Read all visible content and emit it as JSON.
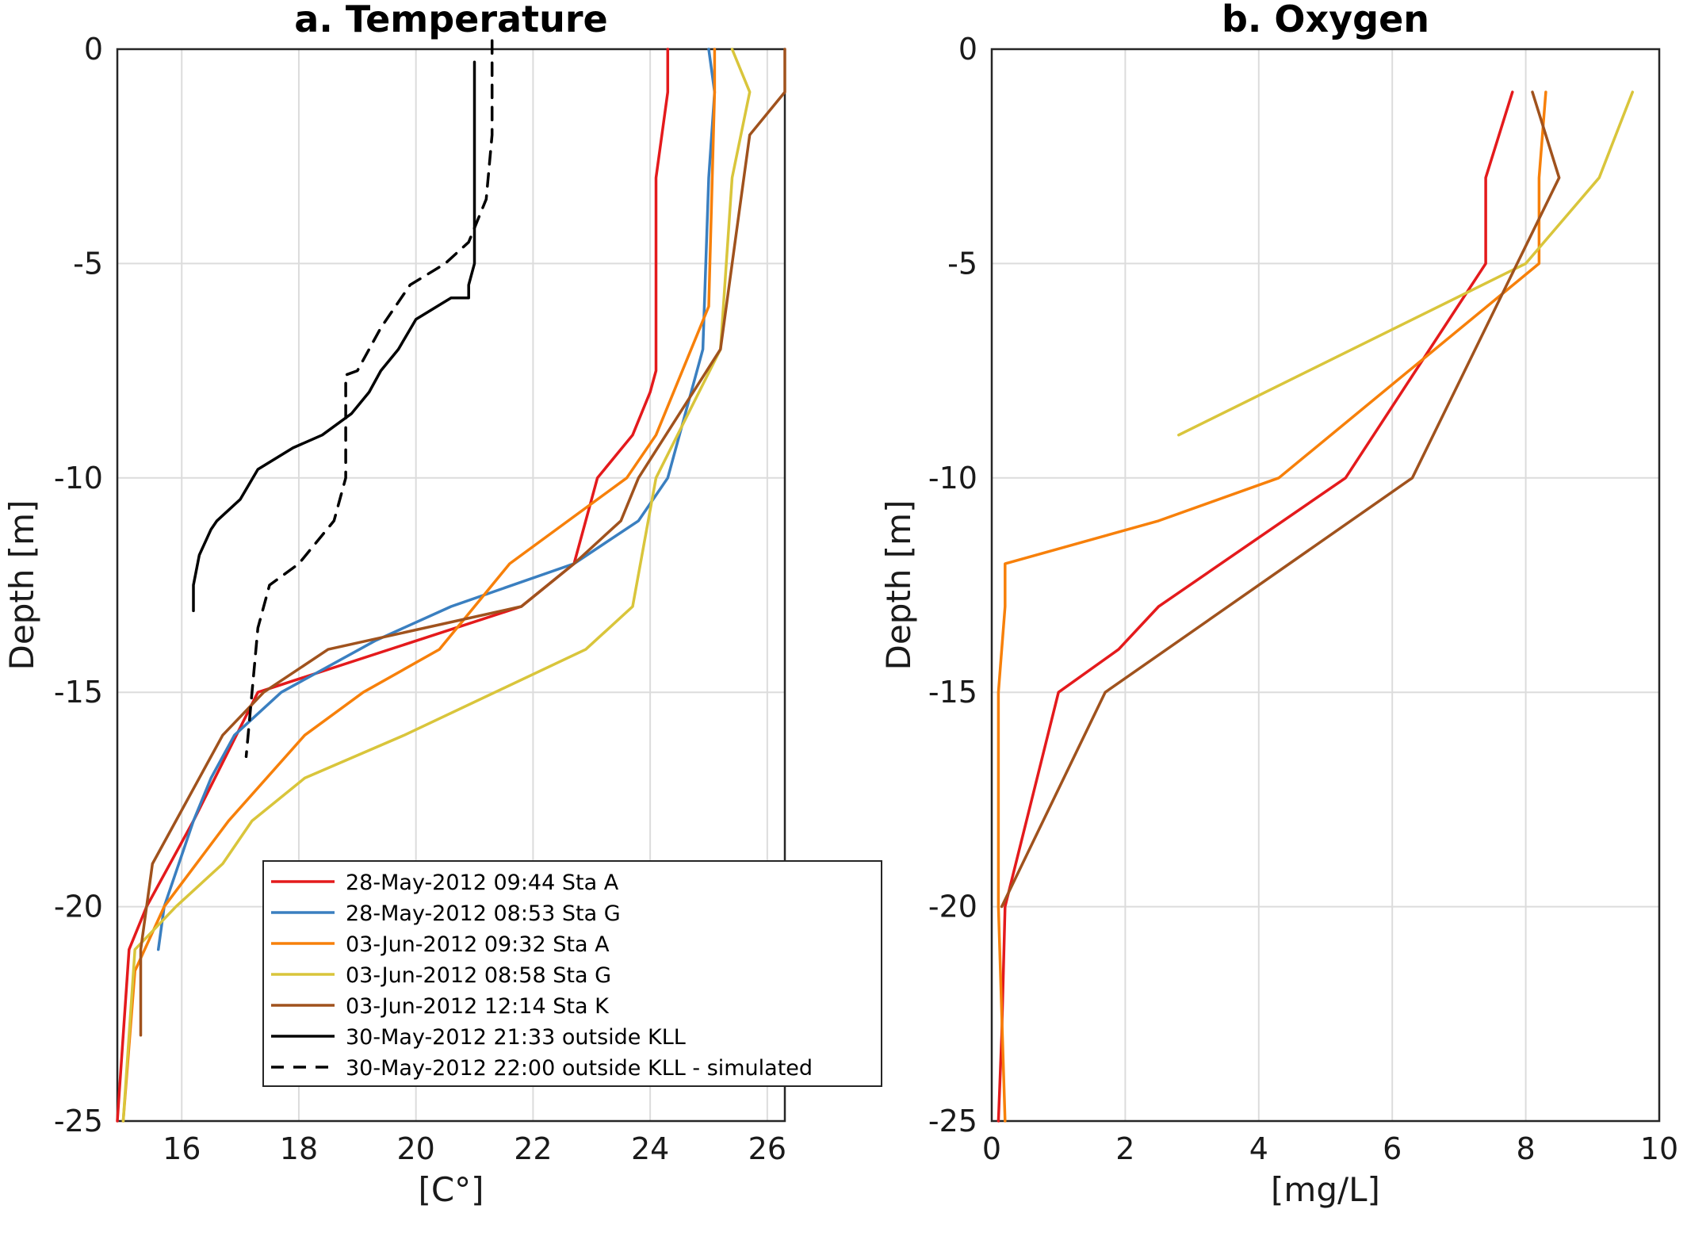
{
  "chart_data": [
    {
      "type": "line",
      "title": "a. Temperature",
      "xlabel": "[C°]",
      "ylabel": "Depth [m]",
      "xlim": [
        14.9,
        26.3
      ],
      "ylim": [
        -25,
        0
      ],
      "xticks": [
        16,
        18,
        20,
        22,
        24,
        26
      ],
      "yticks": [
        0,
        -5,
        -10,
        -15,
        -20,
        -25
      ],
      "grid": true,
      "legend_position": "bottom-right",
      "series": [
        {
          "name": "28-May-2012 09:44 Sta A",
          "color": "#e41a1c",
          "style": "solid",
          "x": [
            24.3,
            24.3,
            24.2,
            24.1,
            24.1,
            24.1,
            24.1,
            24.0,
            23.7,
            23.1,
            22.7,
            21.8,
            20.0,
            17.3,
            16.2,
            15.4,
            15.1,
            14.9
          ],
          "y": [
            0,
            -1,
            -2,
            -3,
            -5,
            -7,
            -7.5,
            -8,
            -9,
            -10,
            -12,
            -13,
            -13.8,
            -15,
            -18,
            -20,
            -21,
            -25
          ]
        },
        {
          "name": "28-May-2012 08:53 Sta G",
          "color": "#3a7fc0",
          "style": "solid",
          "x": [
            25.0,
            25.1,
            25.0,
            24.9,
            24.3,
            23.8,
            22.7,
            20.6,
            19.3,
            17.7,
            16.9,
            16.5,
            16.2,
            15.7,
            15.6
          ],
          "y": [
            0,
            -1,
            -3,
            -7,
            -10,
            -11,
            -12,
            -13,
            -13.8,
            -15,
            -16,
            -17,
            -18,
            -20,
            -21
          ]
        },
        {
          "name": "03-Jun-2012 09:32 Sta A",
          "color": "#f7800a",
          "style": "solid",
          "x": [
            25.1,
            25.1,
            25.0,
            24.1,
            23.6,
            22.6,
            21.6,
            20.4,
            19.1,
            18.1,
            16.8,
            15.7,
            15.2,
            15.0
          ],
          "y": [
            0,
            -1,
            -6,
            -9,
            -10,
            -11,
            -12,
            -14,
            -15,
            -16,
            -18,
            -20,
            -21.5,
            -25
          ]
        },
        {
          "name": "03-Jun-2012 08:58 Sta G",
          "color": "#d9c53b",
          "style": "solid",
          "x": [
            25.4,
            25.7,
            25.4,
            25.2,
            24.1,
            23.7,
            22.9,
            19.8,
            18.1,
            17.2,
            16.7,
            15.9,
            15.2,
            15.0
          ],
          "y": [
            0,
            -1,
            -3,
            -7,
            -10,
            -13,
            -14,
            -16,
            -17,
            -18,
            -19,
            -20,
            -21,
            -25
          ]
        },
        {
          "name": "03-Jun-2012 12:14 Sta K",
          "color": "#a0521d",
          "style": "solid",
          "x": [
            26.3,
            26.3,
            25.7,
            25.5,
            25.2,
            23.8,
            23.5,
            22.7,
            21.8,
            18.5,
            17.4,
            16.7,
            15.9,
            15.5,
            15.3,
            15.3
          ],
          "y": [
            0,
            -1,
            -2,
            -4,
            -7,
            -10,
            -11,
            -12,
            -13,
            -14,
            -15,
            -16,
            -18,
            -19,
            -21,
            -23
          ]
        },
        {
          "name": "30-May-2012 21:33 outside KLL",
          "color": "#000000",
          "style": "solid",
          "x": [
            21.0,
            21.0,
            21.0,
            21.0,
            20.9,
            20.9,
            20.6,
            20.0,
            19.7,
            19.4,
            19.2,
            18.9,
            18.4,
            17.9,
            17.3,
            17.0,
            16.6,
            16.5,
            16.3,
            16.2,
            16.2
          ],
          "y": [
            -0.3,
            -2,
            -4,
            -5,
            -5.5,
            -5.8,
            -5.8,
            -6.3,
            -7,
            -7.5,
            -8,
            -8.5,
            -9,
            -9.3,
            -9.8,
            -10.5,
            -11,
            -11.2,
            -11.8,
            -12.5,
            -13.1
          ]
        },
        {
          "name": "30-May-2012 22:00 outside KLL - simulated",
          "color": "#000000",
          "style": "dashed",
          "x": [
            21.3,
            21.3,
            21.2,
            20.9,
            20.5,
            19.9,
            19.4,
            19.0,
            18.8,
            18.8,
            18.6,
            18.0,
            17.5,
            17.3,
            17.2,
            17.1
          ],
          "y": [
            0.2,
            -2,
            -3.5,
            -4.5,
            -5,
            -5.5,
            -6.5,
            -7.5,
            -7.6,
            -10,
            -11,
            -12,
            -12.5,
            -13.5,
            -15,
            -16.5
          ]
        }
      ]
    },
    {
      "type": "line",
      "title": "b. Oxygen",
      "xlabel": "[mg/L]",
      "ylabel": "Depth [m]",
      "xlim": [
        0,
        10
      ],
      "ylim": [
        -25,
        0
      ],
      "xticks": [
        0,
        2,
        4,
        6,
        8,
        10
      ],
      "yticks": [
        0,
        -5,
        -10,
        -15,
        -20,
        -25
      ],
      "grid": true,
      "series": [
        {
          "name": "28-May-2012 09:44 Sta A",
          "color": "#e41a1c",
          "style": "solid",
          "x": [
            7.8,
            7.4,
            7.4,
            5.3,
            2.5,
            1.9,
            1.0,
            0.2,
            0.15,
            0.1
          ],
          "y": [
            -1,
            -3,
            -5,
            -10,
            -13,
            -14,
            -15,
            -20,
            -23,
            -25
          ]
        },
        {
          "name": "03-Jun-2012 09:32 Sta A",
          "color": "#f7800a",
          "style": "solid",
          "x": [
            8.3,
            8.2,
            8.2,
            4.3,
            2.5,
            0.2,
            0.2,
            0.1,
            0.1,
            0.2
          ],
          "y": [
            -1,
            -3,
            -5,
            -10,
            -11,
            -12,
            -13,
            -15,
            -20,
            -25
          ]
        },
        {
          "name": "03-Jun-2012 08:58 Sta G",
          "color": "#d9c53b",
          "style": "solid",
          "x": [
            9.6,
            9.1,
            8.0,
            2.8
          ],
          "y": [
            -1,
            -3,
            -5,
            -9
          ]
        },
        {
          "name": "03-Jun-2012 12:14 Sta K",
          "color": "#a0521d",
          "style": "solid",
          "x": [
            8.1,
            8.5,
            6.3,
            1.7,
            0.15
          ],
          "y": [
            -1,
            -3,
            -10,
            -15,
            -20
          ]
        }
      ]
    }
  ]
}
